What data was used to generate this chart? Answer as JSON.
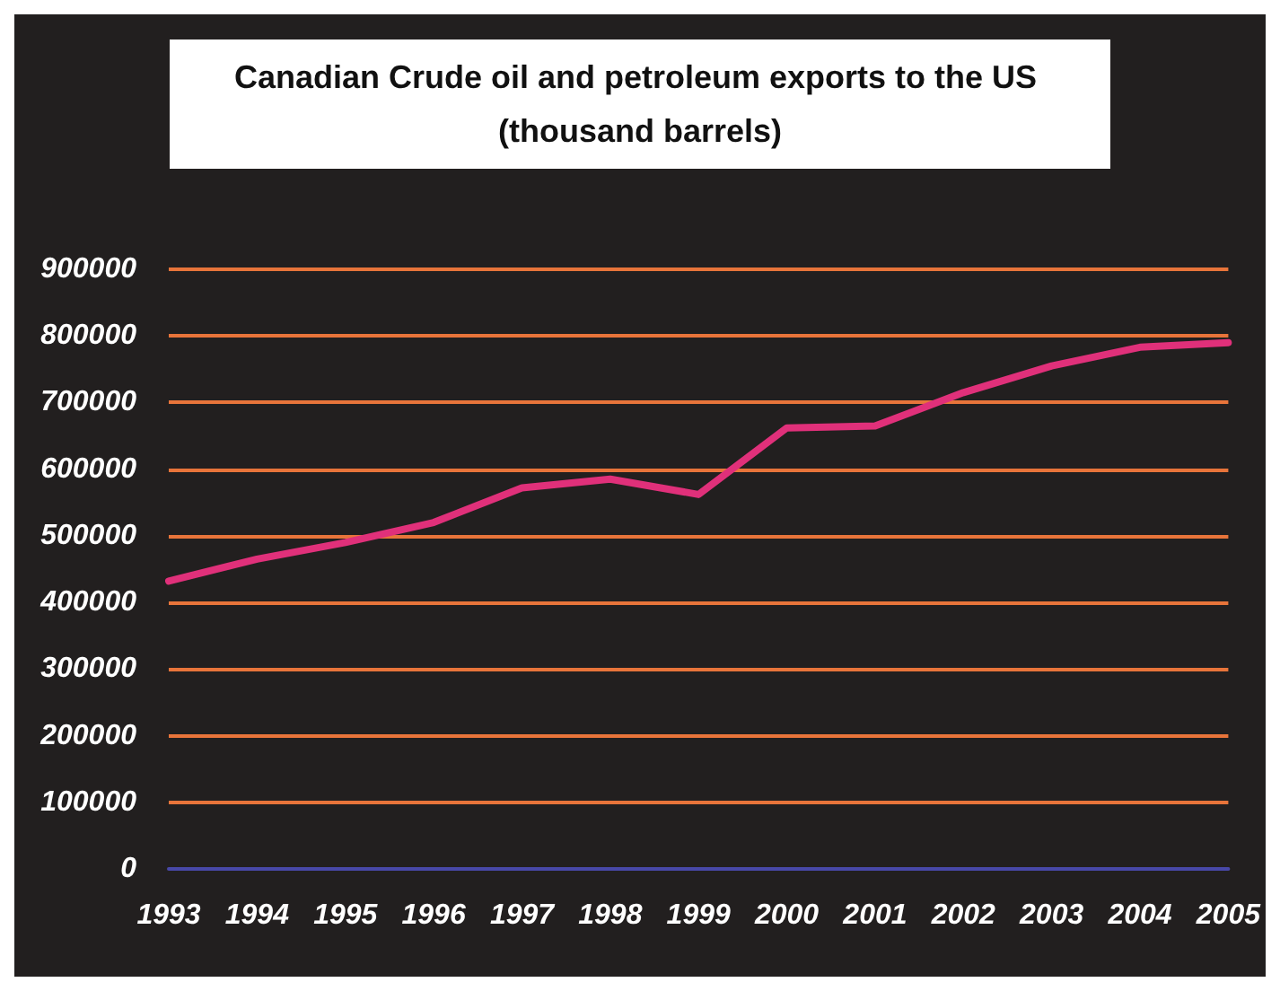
{
  "chart_data": {
    "type": "line",
    "title": "Canadian Crude oil and petroleum exports to the US (thousand barrels)",
    "categories": [
      "1993",
      "1994",
      "1995",
      "1996",
      "1997",
      "1998",
      "1999",
      "2000",
      "2001",
      "2002",
      "2003",
      "2004",
      "2005"
    ],
    "series": [
      {
        "color": "#e0307a",
        "values": [
          432000,
          465000,
          490000,
          520000,
          572000,
          585000,
          562000,
          662000,
          665000,
          715000,
          755000,
          783000,
          790000
        ]
      }
    ],
    "ylim": [
      0,
      900000
    ],
    "yticks": [
      0,
      100000,
      200000,
      300000,
      400000,
      500000,
      600000,
      700000,
      800000,
      900000
    ],
    "grid": "y",
    "marker": "none",
    "line_style": "solid"
  }
}
